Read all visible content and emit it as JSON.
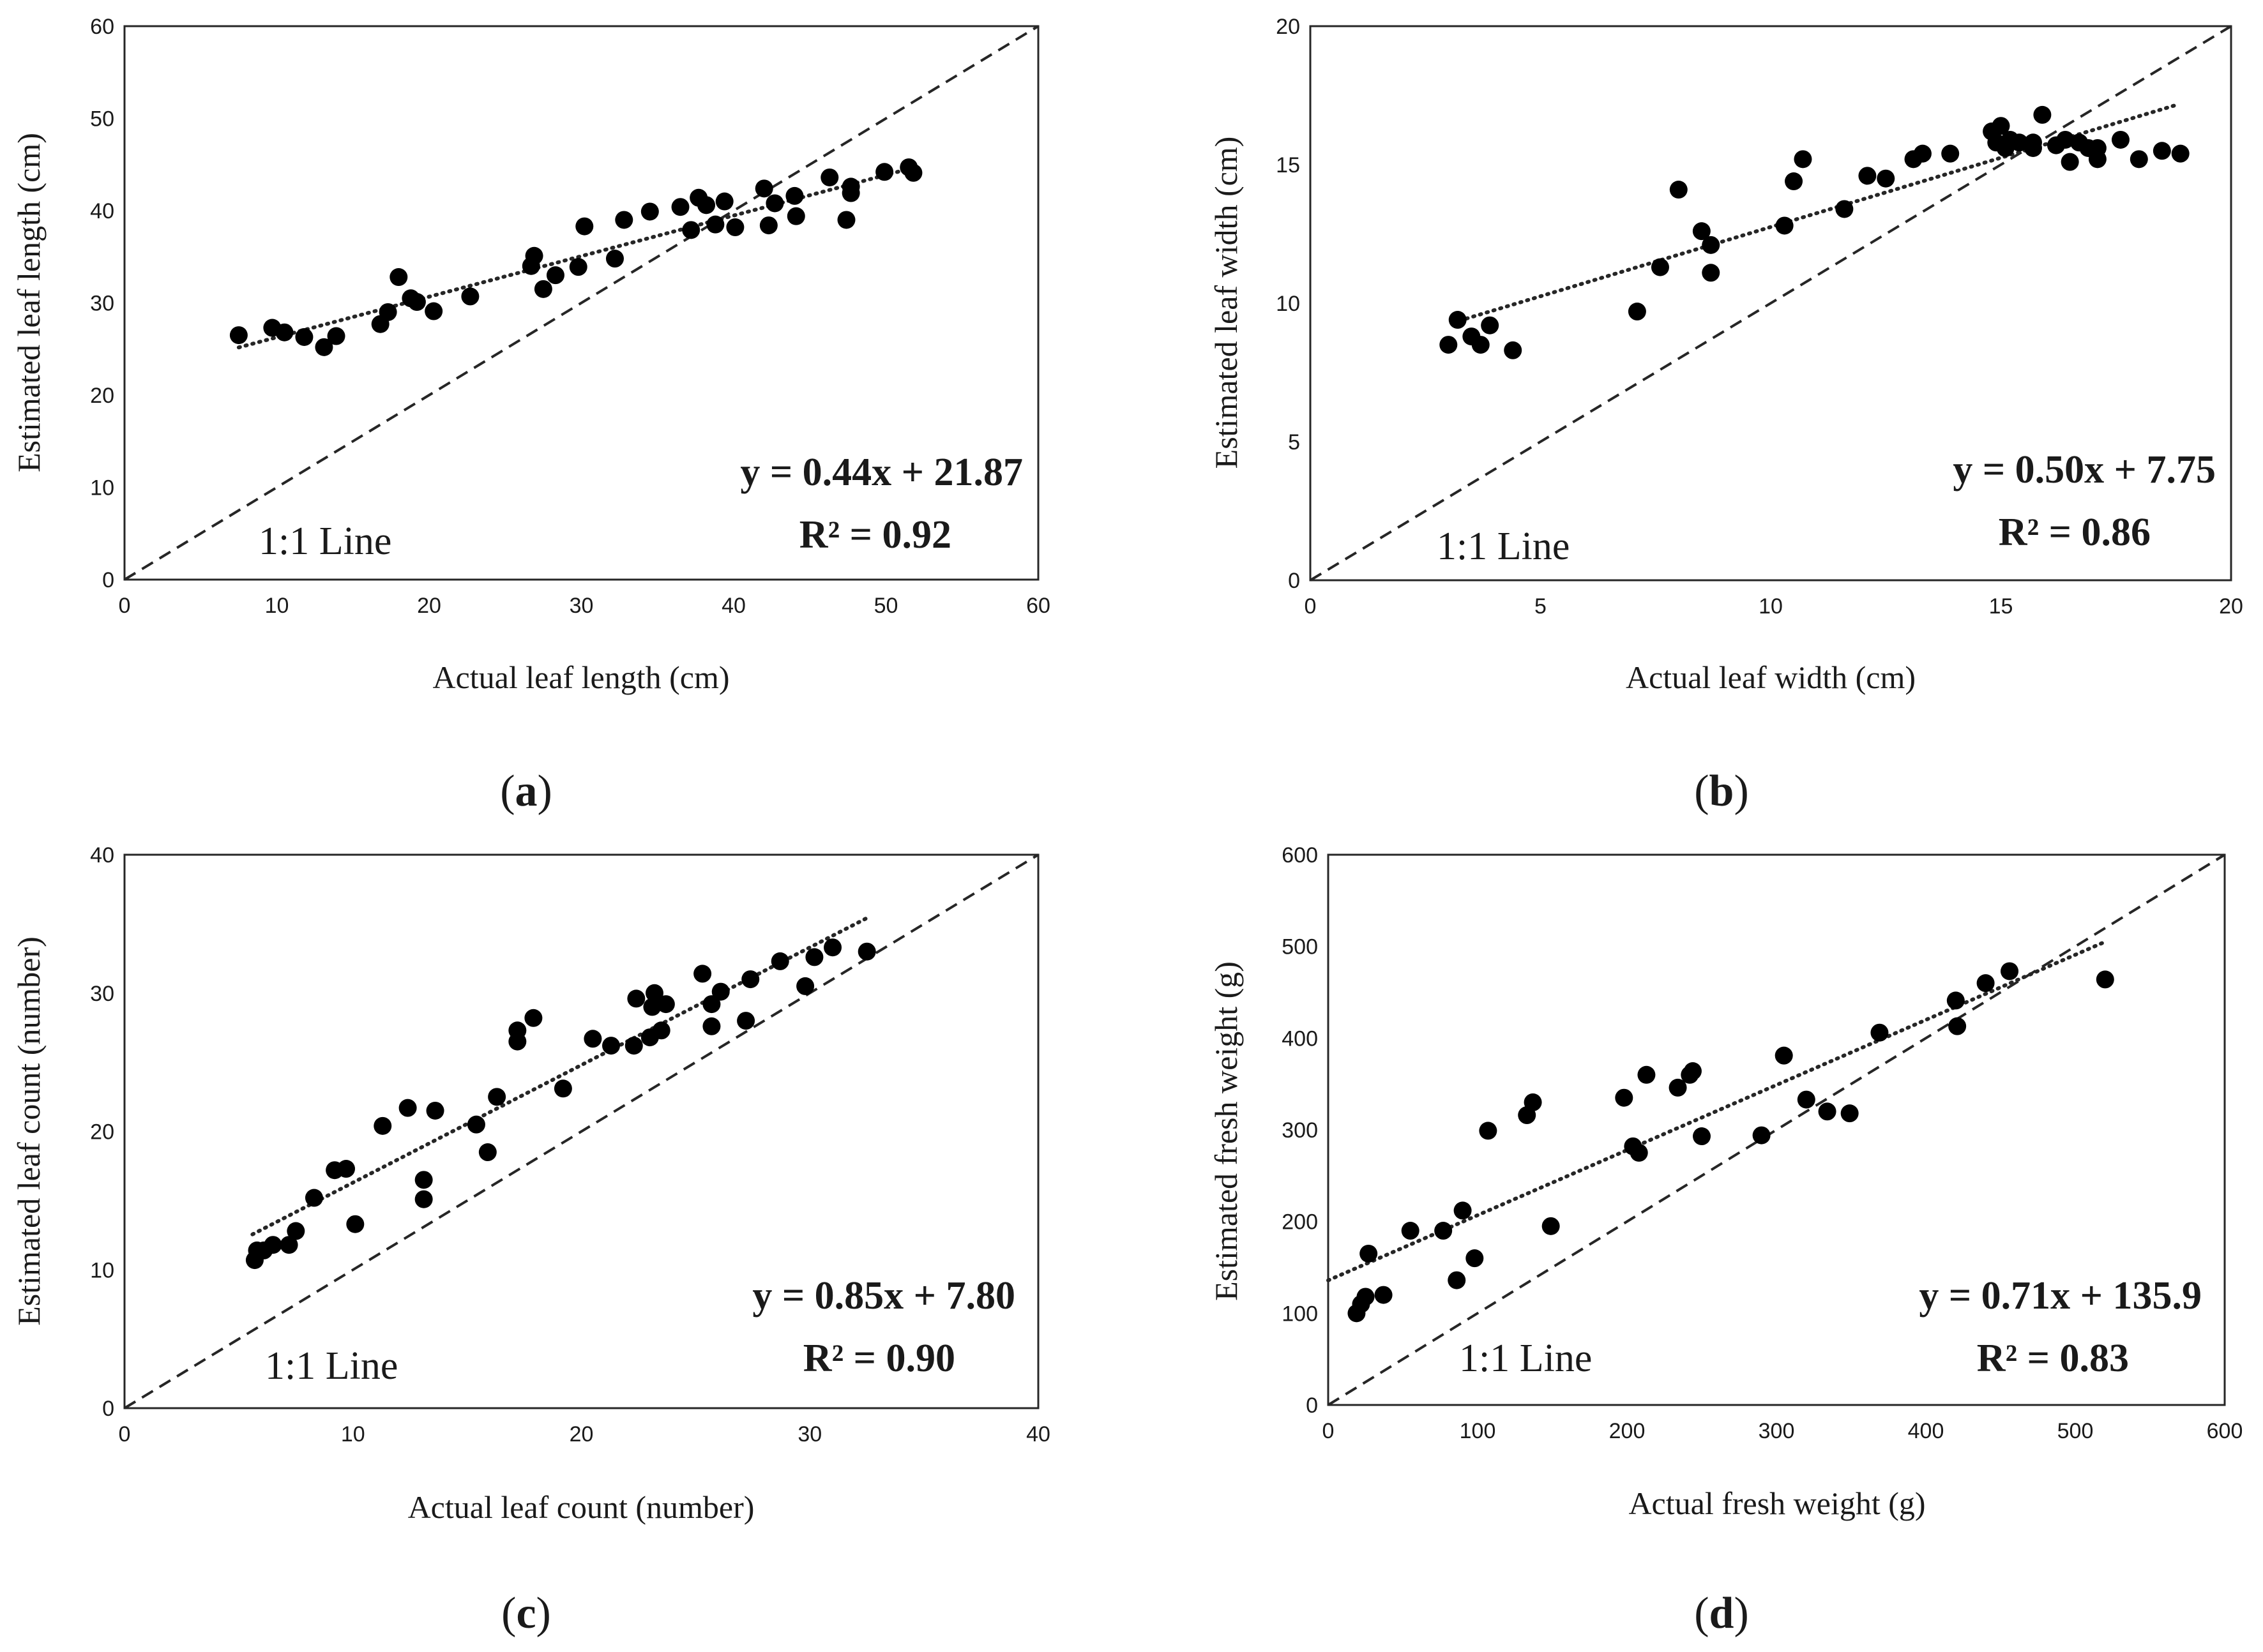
{
  "chart_data": [
    {
      "id": "a",
      "type": "scatter",
      "panel_label_bold": "a",
      "xlabel": "Actual leaf length (cm)",
      "ylabel": "Estimated leaf length (cm)",
      "xlim": [
        0,
        60
      ],
      "ylim": [
        0,
        60
      ],
      "xticks": [
        0,
        10,
        20,
        30,
        40,
        50,
        60
      ],
      "yticks": [
        0,
        10,
        20,
        30,
        40,
        50,
        60
      ],
      "equation": "y = 0.44x + 21.87",
      "r2_text": "R² = 0.92",
      "oneone_label": "1:1 Line",
      "trendline": {
        "slope": 0.44,
        "intercept": 21.87,
        "x_range": [
          7.5,
          52
        ]
      },
      "points": [
        [
          7.5,
          26.5
        ],
        [
          9.7,
          27.3
        ],
        [
          10.5,
          26.8
        ],
        [
          11.8,
          26.3
        ],
        [
          13.1,
          25.2
        ],
        [
          13.9,
          26.4
        ],
        [
          16.8,
          27.7
        ],
        [
          17.3,
          29.0
        ],
        [
          18.0,
          32.8
        ],
        [
          18.8,
          30.5
        ],
        [
          19.2,
          30.1
        ],
        [
          20.3,
          29.1
        ],
        [
          22.7,
          30.7
        ],
        [
          26.7,
          34.0
        ],
        [
          26.9,
          35.1
        ],
        [
          27.5,
          31.5
        ],
        [
          28.3,
          33.0
        ],
        [
          29.8,
          33.9
        ],
        [
          30.2,
          38.3
        ],
        [
          32.2,
          34.8
        ],
        [
          32.8,
          39.0
        ],
        [
          34.5,
          39.9
        ],
        [
          36.5,
          40.4
        ],
        [
          37.2,
          37.9
        ],
        [
          37.7,
          41.4
        ],
        [
          38.2,
          40.6
        ],
        [
          38.8,
          38.5
        ],
        [
          39.4,
          41.0
        ],
        [
          40.1,
          38.2
        ],
        [
          42.0,
          42.4
        ],
        [
          42.3,
          38.4
        ],
        [
          42.7,
          40.8
        ],
        [
          44.0,
          41.6
        ],
        [
          44.1,
          39.4
        ],
        [
          46.3,
          43.6
        ],
        [
          47.4,
          39.0
        ],
        [
          47.7,
          42.6
        ],
        [
          47.7,
          41.9
        ],
        [
          49.9,
          44.2
        ],
        [
          51.5,
          44.7
        ],
        [
          51.8,
          44.1
        ]
      ]
    },
    {
      "id": "b",
      "type": "scatter",
      "panel_label_bold": "b",
      "xlabel": "Actual leaf width (cm)",
      "ylabel": "Estimated leaf width (cm)",
      "xlim": [
        0,
        20
      ],
      "ylim": [
        0,
        20
      ],
      "xticks": [
        0,
        5,
        10,
        15,
        20
      ],
      "yticks": [
        0,
        5,
        10,
        15,
        20
      ],
      "equation": "y = 0.50x + 7.75",
      "r2_text": "R² = 0.86",
      "oneone_label": "1:1 Line",
      "trendline": {
        "slope": 0.5,
        "intercept": 7.75,
        "x_range": [
          3.1,
          18.8
        ]
      },
      "points": [
        [
          3.0,
          8.5
        ],
        [
          3.2,
          9.4
        ],
        [
          3.5,
          8.8
        ],
        [
          3.7,
          8.5
        ],
        [
          3.9,
          9.2
        ],
        [
          4.4,
          8.3
        ],
        [
          7.1,
          9.7
        ],
        [
          7.6,
          11.3
        ],
        [
          8.0,
          14.1
        ],
        [
          8.5,
          12.6
        ],
        [
          8.7,
          12.1
        ],
        [
          8.7,
          11.1
        ],
        [
          10.3,
          12.8
        ],
        [
          10.5,
          14.4
        ],
        [
          10.7,
          15.2
        ],
        [
          11.6,
          13.4
        ],
        [
          12.1,
          14.6
        ],
        [
          12.5,
          14.5
        ],
        [
          13.1,
          15.2
        ],
        [
          13.3,
          15.4
        ],
        [
          13.9,
          15.4
        ],
        [
          14.8,
          16.2
        ],
        [
          14.9,
          15.8
        ],
        [
          15.0,
          16.4
        ],
        [
          15.1,
          15.6
        ],
        [
          15.2,
          15.9
        ],
        [
          15.4,
          15.8
        ],
        [
          15.7,
          15.6
        ],
        [
          15.7,
          15.8
        ],
        [
          15.9,
          16.8
        ],
        [
          16.2,
          15.7
        ],
        [
          16.4,
          15.9
        ],
        [
          16.5,
          15.1
        ],
        [
          16.7,
          15.8
        ],
        [
          16.9,
          15.6
        ],
        [
          17.1,
          15.2
        ],
        [
          17.1,
          15.6
        ],
        [
          17.6,
          15.9
        ],
        [
          18.0,
          15.2
        ],
        [
          18.5,
          15.5
        ],
        [
          18.9,
          15.4
        ]
      ]
    },
    {
      "id": "c",
      "type": "scatter",
      "panel_label_bold": "c",
      "xlabel": "Actual leaf count (number)",
      "ylabel": "Estimated leaf count (number)",
      "xlim": [
        0,
        40
      ],
      "ylim": [
        0,
        40
      ],
      "xticks": [
        0,
        10,
        20,
        30,
        40
      ],
      "yticks": [
        0,
        10,
        20,
        30,
        40
      ],
      "equation": "y = 0.85x + 7.80",
      "r2_text": "R² = 0.90",
      "oneone_label": "1:1 Line",
      "trendline": {
        "slope": 0.85,
        "intercept": 7.8,
        "x_range": [
          5.6,
          32.5
        ]
      },
      "points": [
        [
          5.7,
          10.7
        ],
        [
          5.8,
          11.4
        ],
        [
          6.1,
          11.4
        ],
        [
          6.5,
          11.8
        ],
        [
          7.2,
          11.8
        ],
        [
          7.5,
          12.8
        ],
        [
          8.3,
          15.2
        ],
        [
          9.2,
          17.2
        ],
        [
          9.7,
          17.3
        ],
        [
          10.1,
          13.3
        ],
        [
          11.3,
          20.4
        ],
        [
          12.4,
          21.7
        ],
        [
          13.1,
          16.5
        ],
        [
          13.1,
          15.1
        ],
        [
          13.6,
          21.5
        ],
        [
          15.4,
          20.5
        ],
        [
          15.9,
          18.5
        ],
        [
          16.3,
          22.5
        ],
        [
          17.2,
          27.3
        ],
        [
          17.2,
          26.5
        ],
        [
          17.9,
          28.2
        ],
        [
          19.2,
          23.1
        ],
        [
          20.5,
          26.7
        ],
        [
          21.3,
          26.2
        ],
        [
          22.3,
          26.2
        ],
        [
          22.4,
          29.6
        ],
        [
          23.0,
          26.8
        ],
        [
          23.1,
          29.0
        ],
        [
          23.2,
          30.0
        ],
        [
          23.5,
          27.3
        ],
        [
          23.7,
          29.2
        ],
        [
          25.3,
          31.4
        ],
        [
          25.7,
          27.6
        ],
        [
          25.7,
          29.2
        ],
        [
          26.1,
          30.1
        ],
        [
          27.2,
          28.0
        ],
        [
          27.4,
          31.0
        ],
        [
          28.7,
          32.3
        ],
        [
          29.8,
          30.5
        ],
        [
          30.2,
          32.6
        ],
        [
          31.0,
          33.3
        ],
        [
          32.5,
          33.0
        ]
      ]
    },
    {
      "id": "d",
      "type": "scatter",
      "panel_label_bold": "d",
      "xlabel": "Actual fresh weight (g)",
      "ylabel": "Estimated fresh weight (g)",
      "xlim": [
        0,
        600
      ],
      "ylim": [
        0,
        600
      ],
      "xticks": [
        0,
        100,
        200,
        300,
        400,
        500,
        600
      ],
      "yticks": [
        0,
        100,
        200,
        300,
        400,
        500,
        600
      ],
      "equation": "y = 0.71x + 135.9",
      "r2_text": "R² = 0.83",
      "oneone_label": "1:1 Line",
      "trendline": {
        "slope": 0.71,
        "intercept": 135.9,
        "x_range": [
          0,
          518
        ]
      },
      "points": [
        [
          19,
          100
        ],
        [
          22,
          110
        ],
        [
          25,
          118
        ],
        [
          27,
          165
        ],
        [
          37,
          120
        ],
        [
          55,
          190
        ],
        [
          77,
          190
        ],
        [
          86,
          136
        ],
        [
          90,
          212
        ],
        [
          98,
          160
        ],
        [
          107,
          299
        ],
        [
          133,
          316
        ],
        [
          137,
          330
        ],
        [
          149,
          195
        ],
        [
          198,
          335
        ],
        [
          204,
          282
        ],
        [
          208,
          275
        ],
        [
          213,
          360
        ],
        [
          234,
          346
        ],
        [
          242,
          360
        ],
        [
          244,
          364
        ],
        [
          250,
          293
        ],
        [
          290,
          294
        ],
        [
          305,
          381
        ],
        [
          320,
          333
        ],
        [
          334,
          320
        ],
        [
          349,
          318
        ],
        [
          369,
          406
        ],
        [
          420,
          441
        ],
        [
          421,
          413
        ],
        [
          440,
          460
        ],
        [
          456,
          473
        ],
        [
          520,
          464
        ]
      ]
    }
  ]
}
